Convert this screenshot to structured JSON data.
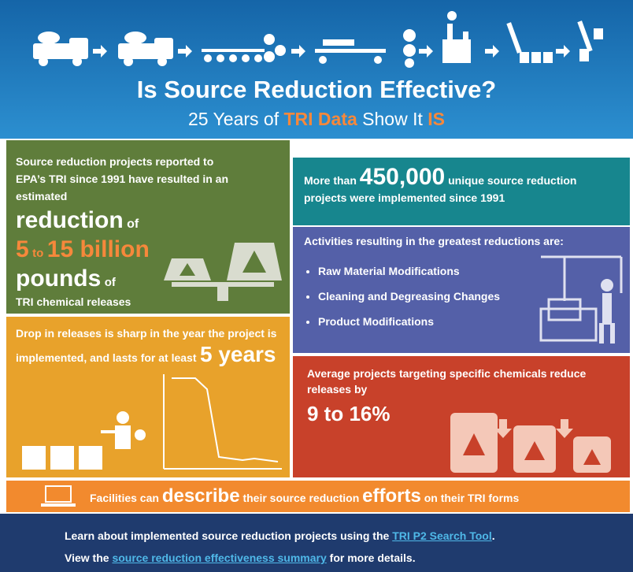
{
  "header": {
    "title": "Is Source Reduction Effective?",
    "subtitle": {
      "a": "25 Years of",
      "b": "TRI Data",
      "c": "Show It",
      "d": "IS"
    }
  },
  "panel_reduction": {
    "intro": "Source reduction projects reported to EPA’s TRI since 1991 have resulted in an estimated",
    "w1": "reduction",
    "w2": "of",
    "n1": "5",
    "w3": "to",
    "n2": "15 billion",
    "w4": "pounds",
    "w5": "of",
    "w6": "TRI chemical releases"
  },
  "panel_projects": {
    "a": "More than",
    "n": "450,000",
    "b": "unique source reduction projects were implemented since 1991"
  },
  "panel_activities": {
    "heading": "Activities resulting in the greatest reductions are:",
    "items": [
      "Raw Material Modifications",
      "Cleaning and Degreasing Changes",
      "Product Modifications"
    ]
  },
  "panel_drop": {
    "text": "Drop in releases is sharp in the year the project is implemented, and lasts for at least",
    "n": "5 years"
  },
  "panel_chemicals": {
    "text": "Average projects targeting specific chemicals reduce releases by",
    "n": "9 to 16%"
  },
  "banner": {
    "a": "Facilities can",
    "b": "describe",
    "c": "their source reduction",
    "d": "efforts",
    "e": "on their TRI forms"
  },
  "footer": {
    "line1": {
      "a": "Learn about implemented source reduction projects using the",
      "link": "TRI P2 Search Tool",
      "b": "."
    },
    "line2": {
      "a": "View the",
      "link": "source reduction effectiveness summary",
      "b": "for more details."
    }
  }
}
